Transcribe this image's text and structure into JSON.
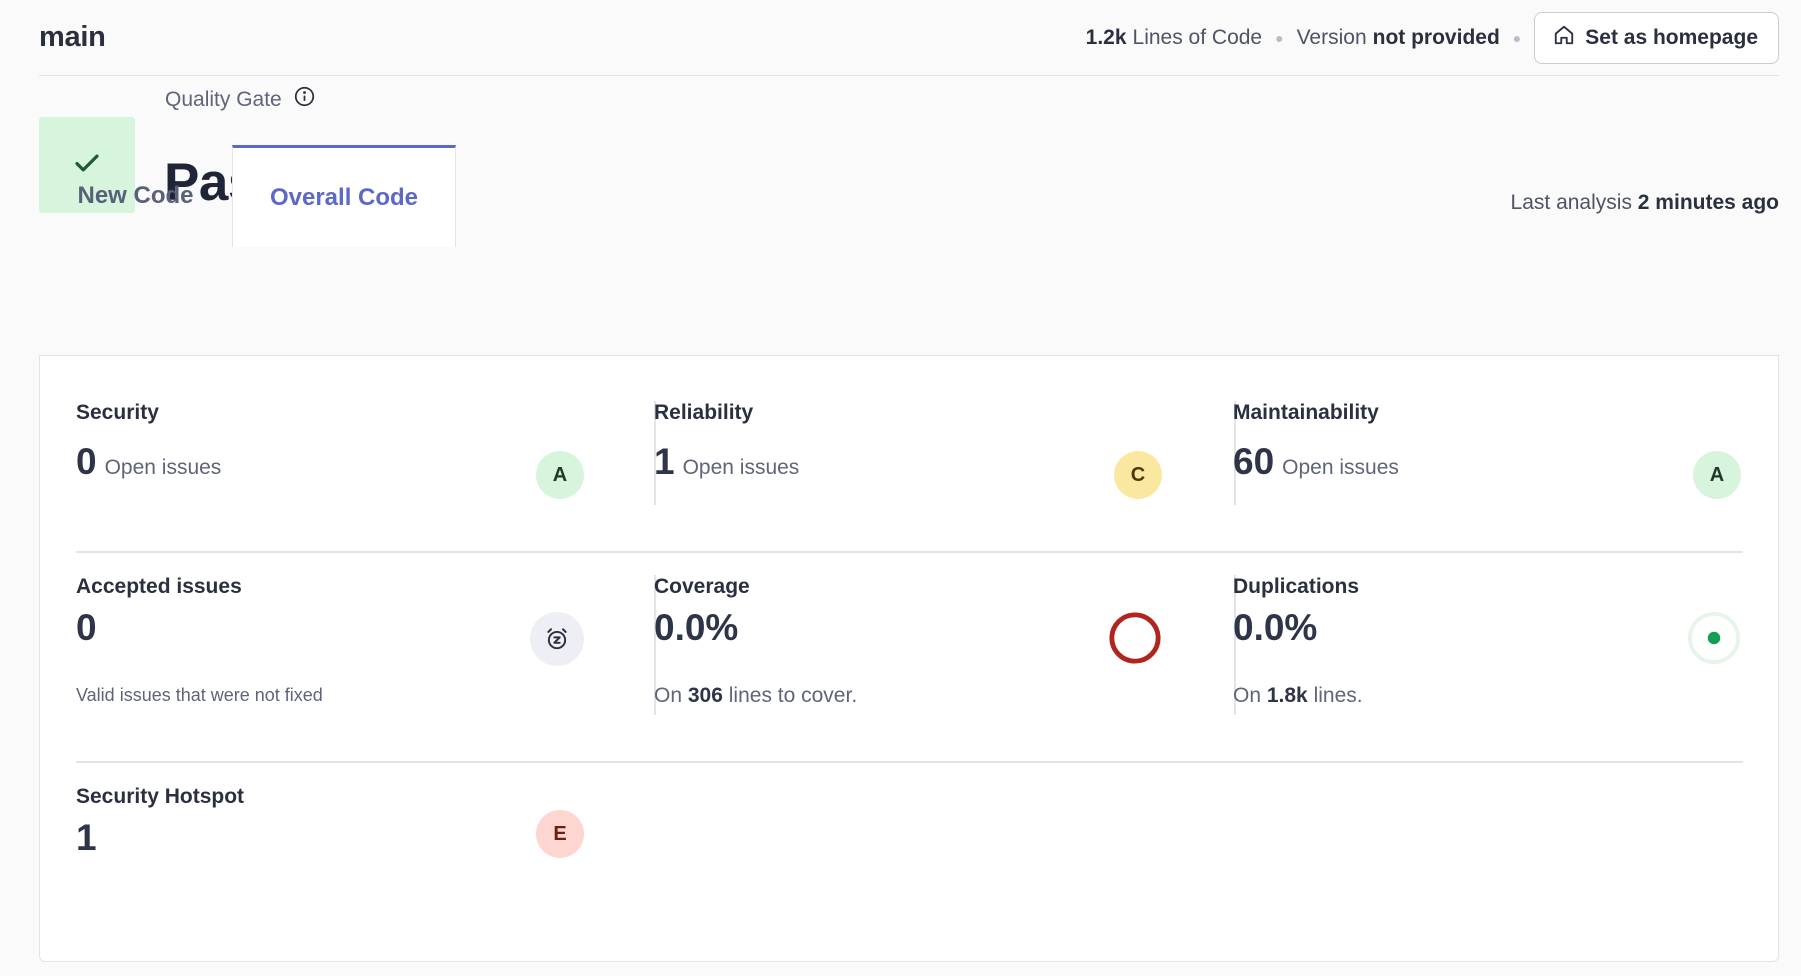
{
  "header": {
    "branch": "main",
    "loc_value": "1.2k",
    "loc_label": "Lines of Code",
    "version_label": "Version",
    "version_value": "not provided",
    "set_homepage": "Set as homepage"
  },
  "quality_gate": {
    "label": "Quality Gate",
    "status": "Passed",
    "last_analysis_label": "Last analysis",
    "last_analysis_value": "2 minutes ago"
  },
  "tabs": [
    {
      "label": "New Code",
      "active": false
    },
    {
      "label": "Overall Code",
      "active": true
    }
  ],
  "metrics": {
    "security": {
      "title": "Security",
      "value": "0",
      "unit": "Open issues",
      "grade": "A"
    },
    "reliability": {
      "title": "Reliability",
      "value": "1",
      "unit": "Open issues",
      "grade": "C"
    },
    "maintainability": {
      "title": "Maintainability",
      "value": "60",
      "unit": "Open issues",
      "grade": "A"
    },
    "accepted": {
      "title": "Accepted issues",
      "value": "0",
      "description": "Valid issues that were not fixed"
    },
    "coverage": {
      "title": "Coverage",
      "value": "0.0%",
      "on": "On",
      "lines": "306",
      "suffix": "lines to cover."
    },
    "duplications": {
      "title": "Duplications",
      "value": "0.0%",
      "on": "On",
      "lines": "1.8k",
      "suffix": "lines."
    },
    "hotspot": {
      "title": "Security Hotspot",
      "value": "1",
      "grade": "E"
    }
  },
  "colors": {
    "accent": "#5c69c7",
    "passed_bg": "#d7f5dd",
    "coverage_ring": "#b0261e",
    "duplication_dot": "#14a050"
  }
}
